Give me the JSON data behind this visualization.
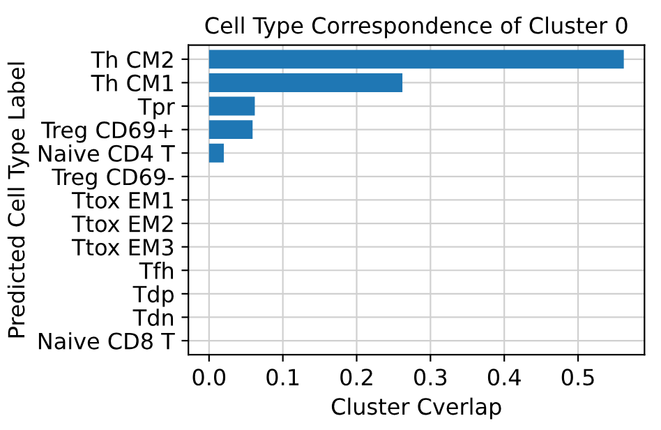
{
  "chart_data": {
    "type": "bar",
    "orientation": "horizontal",
    "title": "Cell Type Correspondence of Cluster 0",
    "xlabel": "Cluster Cverlap",
    "ylabel": "Predicted Cell Type Label",
    "categories": [
      "Th CM2",
      "Th CM1",
      "Tpr",
      "Treg CD69+",
      "Naive CD4 T",
      "Treg CD69-",
      "Ttox EM1",
      "Ttox EM2",
      "Ttox EM3",
      "Tfh",
      "Tdp",
      "Tdn",
      "Naive CD8 T"
    ],
    "values": [
      0.562,
      0.262,
      0.062,
      0.059,
      0.02,
      0,
      0,
      0,
      0,
      0,
      0,
      0,
      0
    ],
    "color": "#1f77b4",
    "xlim": [
      -0.028,
      0.59
    ],
    "xticks": [
      {
        "value": 0,
        "label": "0.0"
      },
      0.1,
      0.2,
      0.3,
      0.4,
      0.5
    ],
    "grid": true
  }
}
